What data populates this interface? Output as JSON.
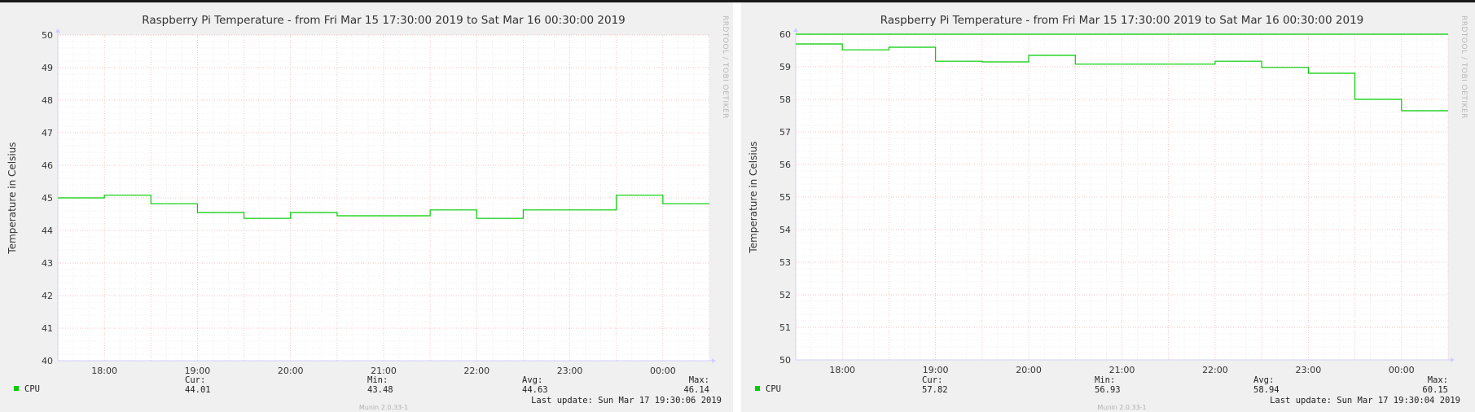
{
  "chart_data": [
    {
      "type": "line",
      "title": "Raspberry Pi Temperature - from Fri Mar 15 17:30:00 2019 to Sat Mar 16 00:30:00 2019",
      "ylabel": "Temperature in Celsius",
      "xlabel": "",
      "ylim": [
        40,
        50
      ],
      "yticks": [
        "40",
        "41",
        "42",
        "43",
        "44",
        "45",
        "46",
        "47",
        "48",
        "49",
        "50"
      ],
      "xticks": [
        "18:00",
        "19:00",
        "20:00",
        "21:00",
        "22:00",
        "23:00",
        "00:00"
      ],
      "grid": true,
      "watermark": "RRDTOOL / TOBI OETIKER",
      "series": [
        {
          "name": "CPU",
          "color": "#00cc00",
          "steps": [
            45.0,
            45.08,
            44.82,
            44.55,
            44.37,
            44.55,
            44.45,
            44.45,
            44.63,
            44.37,
            44.63,
            44.63,
            45.08,
            44.82
          ],
          "stats": {
            "cur_label": "Cur:",
            "cur": "44.01",
            "min_label": "Min:",
            "min": "43.48",
            "avg_label": "Avg:",
            "avg": "44.63",
            "max_label": "Max:",
            "max": "46.14"
          }
        }
      ],
      "last_update": "Last update:  Sun Mar 17 19:30:06 2019",
      "footer": "Munin 2.0.33-1"
    },
    {
      "type": "line",
      "title": "Raspberry Pi Temperature - from Fri Mar 15 17:30:00 2019 to Sat Mar 16 00:30:00 2019",
      "ylabel": "Temperature in Celsius",
      "xlabel": "",
      "ylim": [
        50,
        60
      ],
      "yticks": [
        "50",
        "51",
        "52",
        "53",
        "54",
        "55",
        "56",
        "57",
        "58",
        "59",
        "60"
      ],
      "xticks": [
        "18:00",
        "19:00",
        "20:00",
        "21:00",
        "22:00",
        "23:00",
        "00:00"
      ],
      "grid": true,
      "watermark": "RRDTOOL / TOBI OETIKER",
      "series": [
        {
          "name": "CPU",
          "color": "#00cc00",
          "steps": [
            59.7,
            59.52,
            59.6,
            59.17,
            59.15,
            59.35,
            59.08,
            59.08,
            59.17,
            58.98,
            58.8,
            58.0,
            57.65
          ],
          "step_ends": [
            1,
            2,
            3,
            4,
            5,
            6,
            7,
            9,
            10,
            11,
            12,
            13,
            14
          ],
          "stats": {
            "cur_label": "Cur:",
            "cur": "57.82",
            "min_label": "Min:",
            "min": "56.93",
            "avg_label": "Avg:",
            "avg": "58.94",
            "max_label": "Max:",
            "max": "60.15"
          }
        }
      ],
      "last_update": "Last update:  Sun Mar 17 19:30:04 2019",
      "footer": "Munin 2.0.33-1"
    }
  ]
}
